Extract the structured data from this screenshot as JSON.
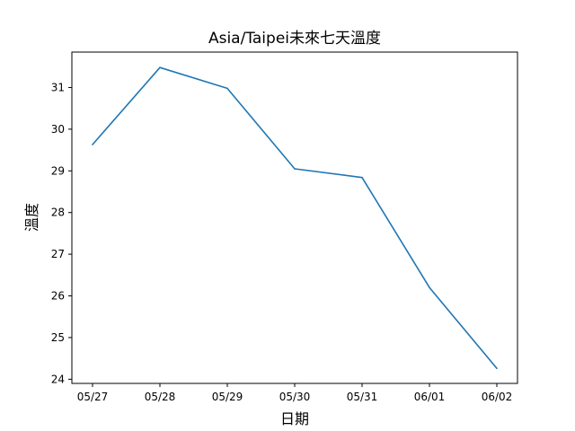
{
  "chart_data": {
    "type": "line",
    "title": "Asia/Taipei未來七天溫度",
    "xlabel": "日期",
    "ylabel": "溫度",
    "categories": [
      "05/27",
      "05/28",
      "05/29",
      "05/30",
      "05/31",
      "06/01",
      "06/02"
    ],
    "series": [
      {
        "values": [
          29.63,
          31.48,
          30.98,
          29.05,
          28.84,
          26.2,
          24.26
        ],
        "color": "#1f77b4"
      }
    ],
    "yticks": [
      24,
      25,
      26,
      27,
      28,
      29,
      30,
      31
    ],
    "ylim": [
      23.9,
      31.85
    ],
    "grid": false,
    "legend": "none"
  }
}
